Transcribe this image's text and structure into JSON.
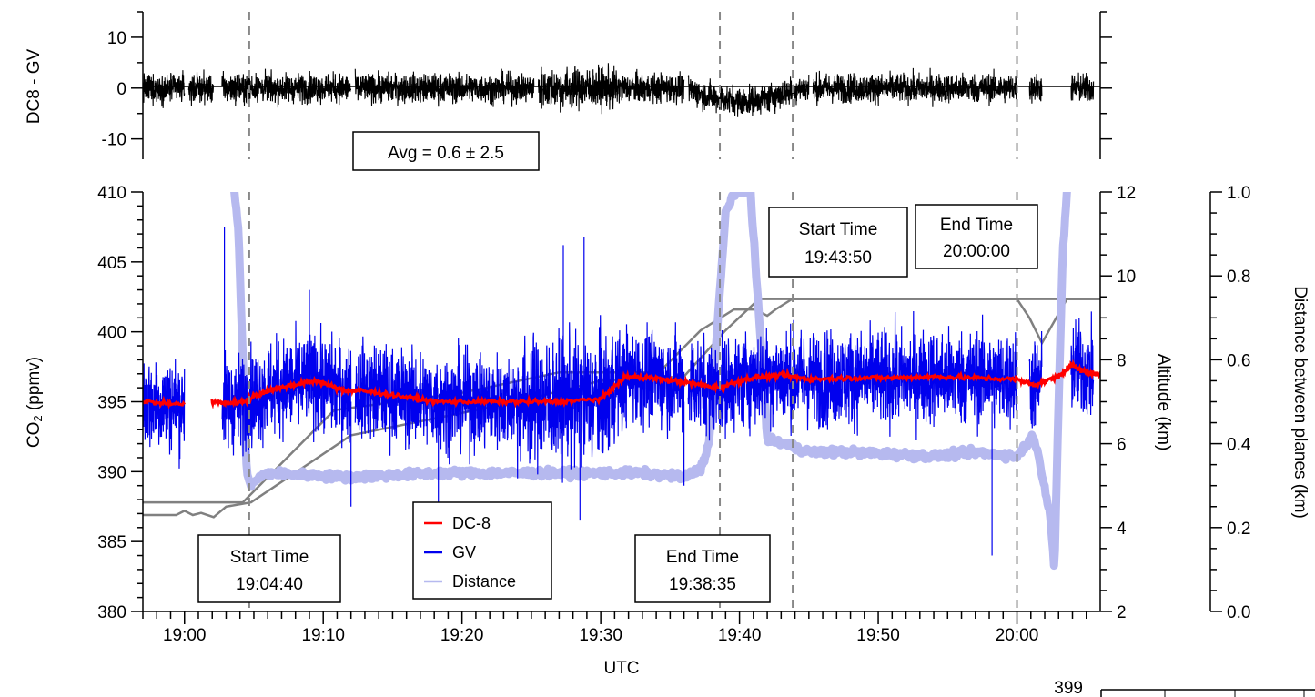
{
  "chart_data": [
    {
      "type": "line",
      "panel": "difference",
      "title": "",
      "xlabel": "",
      "ylabel": "DC8 - GV",
      "ylim": [
        -14,
        15
      ],
      "yticks": [
        10,
        0,
        -10
      ],
      "ytick_labels": [
        "10",
        "0",
        "-10"
      ],
      "series": [
        {
          "color": "#000000",
          "segments": [
            [
              18.95,
              19.0
            ],
            [
              19.005,
              19.035
            ],
            [
              19.045,
              19.2
            ],
            [
              19.205,
              19.42
            ],
            [
              19.425,
              19.6
            ],
            [
              19.605,
              19.75
            ],
            [
              19.755,
              20.0
            ],
            [
              20.015,
              20.03
            ],
            [
              20.065,
              20.092
            ]
          ],
          "noise_amplitude": 2.5,
          "mean": 0.6
        }
      ],
      "annotations": [
        {
          "text": "Avg = 0.6 ± 2.5"
        }
      ]
    },
    {
      "type": "line",
      "panel": "main",
      "title": "",
      "xlabel": "UTC",
      "xlim": [
        18.95,
        20.1
      ],
      "xticks": [
        19.0,
        19.1667,
        19.3333,
        19.5,
        19.6667,
        19.8333,
        20.0
      ],
      "xtick_labels": [
        "19:00",
        "19:10",
        "19:20",
        "19:30",
        "19:40",
        "19:50",
        "20:00"
      ],
      "y_axes": [
        {
          "side": "left",
          "label": "CO₂ (ppmv)",
          "label_main": "CO",
          "label_sub": "2",
          "label_rest": " (ppmv)",
          "ylim": [
            380,
            410
          ],
          "tick_labels": [
            "380",
            "385",
            "390",
            "395",
            "400",
            "405",
            "410"
          ]
        },
        {
          "side": "right",
          "label": "Altitude (km)",
          "ylim": [
            2,
            12
          ],
          "tick_labels": [
            "2",
            "4",
            "6",
            "8",
            "10",
            "12"
          ]
        },
        {
          "side": "far-right",
          "label": "Distance between planes (km)",
          "ylim": [
            0.0,
            1.0
          ],
          "tick_labels": [
            "0.0",
            "0.2",
            "0.4",
            "0.6",
            "0.8",
            "1.0"
          ]
        }
      ],
      "series": [
        {
          "name": "DC-8",
          "color": "#ff0000",
          "axis": "left",
          "x": [
            18.95,
            19.0,
            19.004,
            19.033,
            19.05,
            19.07,
            19.1,
            19.13,
            19.16,
            19.19,
            19.21,
            19.25,
            19.3,
            19.35,
            19.4,
            19.45,
            19.5,
            19.53,
            19.56,
            19.6,
            19.64,
            19.68,
            19.72,
            19.75,
            19.8,
            19.85,
            19.9,
            19.95,
            20.0,
            20.02,
            20.05,
            20.065,
            20.08,
            20.1
          ],
          "y": [
            395.0,
            394.8,
            null,
            395.0,
            394.9,
            395.0,
            395.8,
            396.2,
            396.5,
            395.8,
            395.8,
            395.5,
            395.0,
            395.0,
            395.0,
            395.0,
            395.2,
            396.8,
            396.7,
            396.4,
            396.0,
            396.7,
            396.9,
            396.6,
            396.7,
            396.7,
            396.8,
            396.7,
            396.6,
            396.2,
            396.8,
            397.6,
            397.2,
            396.9
          ]
        },
        {
          "name": "GV",
          "color": "#0000ee",
          "axis": "left",
          "segments": [
            [
              18.95,
              19.0
            ],
            [
              19.045,
              19.2
            ],
            [
              19.205,
              19.6
            ],
            [
              19.605,
              20.0
            ],
            [
              20.015,
              20.03
            ],
            [
              20.065,
              20.092
            ]
          ],
          "spikes": [
            [
              19.048,
              407.5
            ],
            [
              19.48,
              406.8
            ],
            [
              19.455,
              406.2
            ],
            [
              19.15,
              403.0
            ],
            [
              19.2,
              387.5
            ],
            [
              19.6,
              389.0
            ],
            [
              19.97,
              384.0
            ],
            [
              19.475,
              386.5
            ],
            [
              19.305,
              387.0
            ]
          ]
        },
        {
          "name": "Distance",
          "color": "#b6b9ef",
          "axis": "far-right",
          "x": [
            19.06,
            19.065,
            19.07,
            19.075,
            19.08,
            19.09,
            19.1,
            19.2,
            19.3,
            19.4,
            19.5,
            19.55,
            19.6,
            19.62,
            19.63,
            19.65,
            19.66,
            19.68,
            19.7,
            19.72,
            19.75,
            19.8,
            19.9,
            19.95,
            20.0,
            20.02,
            20.03,
            20.04,
            20.045,
            20.05,
            20.055,
            20.06
          ],
          "y": [
            1.0,
            0.9,
            0.6,
            0.33,
            0.3,
            0.32,
            0.33,
            0.32,
            0.33,
            0.33,
            0.33,
            0.33,
            0.32,
            0.34,
            0.4,
            0.95,
            1.0,
            1.0,
            0.41,
            0.4,
            0.38,
            0.38,
            0.37,
            0.38,
            0.37,
            0.42,
            0.33,
            0.23,
            0.1,
            0.5,
            0.85,
            1.0
          ]
        },
        {
          "name": "Altitude DC-8",
          "color": "#808080",
          "axis": "right",
          "x": [
            18.95,
            19.0,
            19.07,
            19.18,
            19.33,
            19.45,
            19.57,
            19.62,
            19.66,
            19.685,
            19.7,
            19.71,
            19.73,
            19.75,
            20.0,
            20.1
          ],
          "y": [
            4.6,
            4.6,
            4.6,
            6.8,
            7.2,
            7.7,
            7.7,
            8.7,
            9.2,
            9.2,
            9.05,
            9.2,
            9.45,
            9.45,
            9.45,
            9.45
          ]
        },
        {
          "name": "Altitude GV",
          "color": "#808080",
          "axis": "right",
          "x": [
            18.95,
            18.99,
            19.0,
            19.01,
            19.02,
            19.035,
            19.05,
            19.08,
            19.2,
            19.4,
            19.5,
            19.6,
            19.65,
            19.69,
            19.7,
            20.0,
            20.015,
            20.03,
            20.06,
            20.1
          ],
          "y": [
            4.3,
            4.3,
            4.4,
            4.3,
            4.35,
            4.25,
            4.5,
            4.6,
            6.2,
            7.0,
            7.5,
            7.6,
            8.7,
            9.45,
            9.45,
            9.45,
            9.0,
            8.4,
            9.45,
            9.45
          ]
        }
      ],
      "legend": {
        "placement": "bottom-left",
        "entries": [
          "DC-8",
          "GV",
          "Distance"
        ]
      },
      "vertical_lines_x": [
        19.0778,
        19.6431,
        19.7306,
        20.0
      ],
      "annotations": [
        {
          "line1": "Start Time",
          "line2": "19:04:40"
        },
        {
          "line1": "End Time",
          "line2": "19:38:35"
        },
        {
          "line1": "Start Time",
          "line2": "19:43:50"
        },
        {
          "line1": "End Time",
          "line2": "20:00:00"
        }
      ]
    },
    {
      "type": "line",
      "panel": "inset-fragment",
      "ytick_labels": [
        "399"
      ]
    }
  ]
}
